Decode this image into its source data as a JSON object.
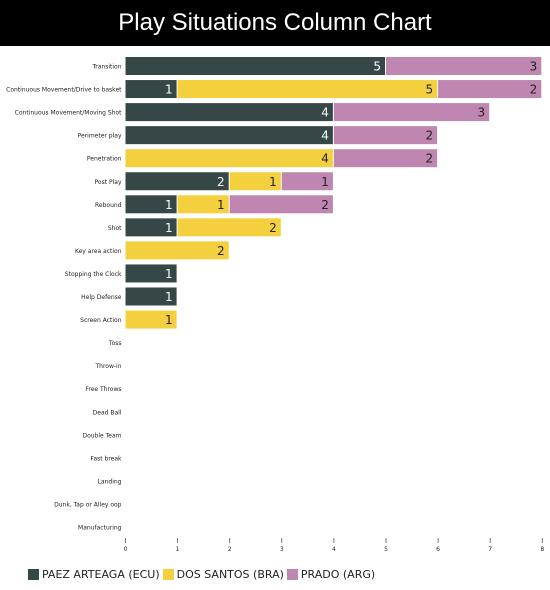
{
  "title": "Play Situations Column Chart",
  "chart_data": {
    "type": "bar",
    "orientation": "horizontal",
    "stacked": true,
    "categories": [
      "Transition",
      "Continuous Movement/Drive to basket",
      "Continuous Movement/Moving Shot",
      "Perimeter play",
      "Penetration",
      "Post Play",
      "Rebound",
      "Shot",
      "Key area action",
      "Stopping the Clock",
      "Help Defense",
      "Screen Action",
      "Toss",
      "Throw-in",
      "Free Throws",
      "Dead Ball",
      "Double Team",
      "Fast break",
      "Landing",
      "Dunk, Tap or Alley oop",
      "Manufacturing"
    ],
    "series": [
      {
        "name": "PAEZ ARTEAGA (ECU)",
        "color": "#364747",
        "values": [
          5,
          1,
          4,
          4,
          0,
          2,
          1,
          1,
          0,
          1,
          1,
          0,
          0,
          0,
          0,
          0,
          0,
          0,
          0,
          0,
          0
        ]
      },
      {
        "name": "DOS SANTOS (BRA)",
        "color": "#f4d03f",
        "values": [
          0,
          5,
          0,
          0,
          4,
          1,
          1,
          2,
          2,
          0,
          0,
          1,
          0,
          0,
          0,
          0,
          0,
          0,
          0,
          0,
          0
        ]
      },
      {
        "name": "PRADO (ARG)",
        "color": "#be86b0",
        "values": [
          3,
          2,
          3,
          2,
          2,
          1,
          2,
          0,
          0,
          0,
          0,
          0,
          0,
          0,
          0,
          0,
          0,
          0,
          0,
          0,
          0
        ]
      }
    ],
    "x_ticks": [
      "0",
      "1",
      "2",
      "3",
      "4",
      "5",
      "6",
      "7",
      "8"
    ],
    "xlim": [
      0,
      8
    ],
    "grid": false,
    "legend": "bottom-left"
  }
}
